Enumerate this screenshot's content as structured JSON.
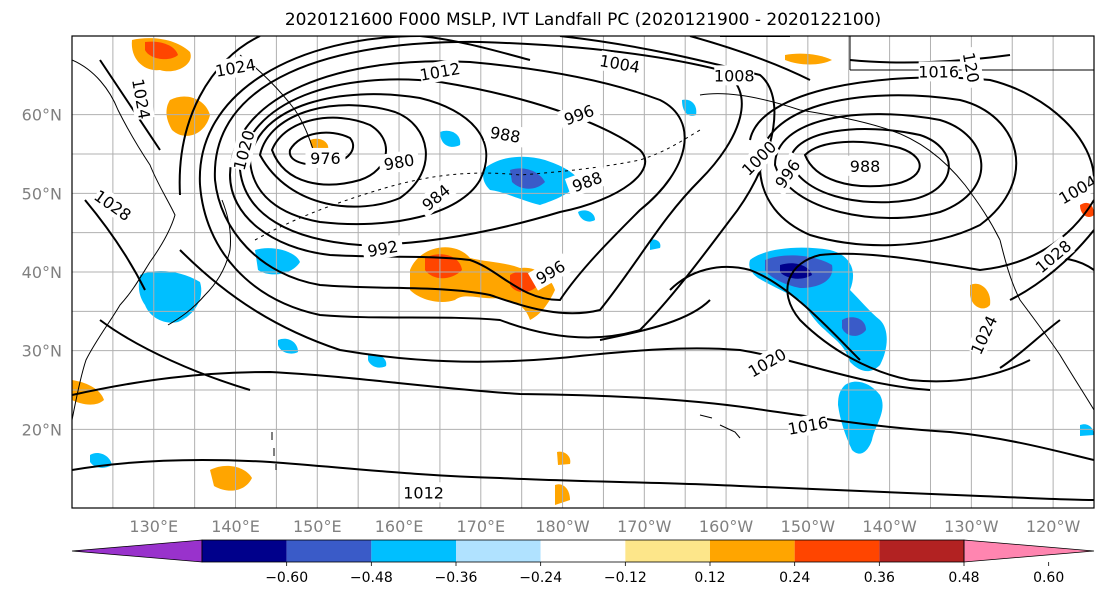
{
  "title": "2020121600 F000 MSLP, IVT Landfall PC (2020121900 - 2020122100)",
  "map": {
    "lon_range": [
      120,
      245
    ],
    "lat_range": [
      10,
      70
    ],
    "lat_ticks": [
      {
        "lat": 60,
        "label": "60°N"
      },
      {
        "lat": 50,
        "label": "50°N"
      },
      {
        "lat": 40,
        "label": "40°N"
      },
      {
        "lat": 30,
        "label": "30°N"
      },
      {
        "lat": 20,
        "label": "20°N"
      }
    ],
    "lon_ticks": [
      {
        "lon": 130,
        "label": "130°E"
      },
      {
        "lon": 140,
        "label": "140°E"
      },
      {
        "lon": 150,
        "label": "150°E"
      },
      {
        "lon": 160,
        "label": "160°E"
      },
      {
        "lon": 170,
        "label": "170°E"
      },
      {
        "lon": 180,
        "label": "180°W"
      },
      {
        "lon": 190,
        "label": "170°W"
      },
      {
        "lon": 200,
        "label": "160°W"
      },
      {
        "lon": 210,
        "label": "150°W"
      },
      {
        "lon": 220,
        "label": "140°W"
      },
      {
        "lon": 230,
        "label": "130°W"
      },
      {
        "lon": 240,
        "label": "120°W"
      }
    ],
    "gridlines": true
  },
  "colorbar": {
    "colors": [
      "#9932cc",
      "#00008b",
      "#3a5bc8",
      "#00bfff",
      "#b0e2ff",
      "#ffffff",
      "#fde68a",
      "#ffa500",
      "#ff4500",
      "#b22222",
      "#ff85b0"
    ],
    "tick_labels": [
      "−0.60",
      "−0.48",
      "−0.36",
      "−0.24",
      "−0.12",
      "0.12",
      "0.24",
      "0.36",
      "0.48",
      "0.60"
    ]
  },
  "contour_labels": [
    {
      "text": "1012",
      "lon": 165,
      "lat": 65.5,
      "rot": -10
    },
    {
      "text": "1004",
      "lon": 187,
      "lat": 66.5,
      "rot": 10
    },
    {
      "text": "1008",
      "lon": 201,
      "lat": 65,
      "rot": 0
    },
    {
      "text": "1016",
      "lon": 226,
      "lat": 65.5,
      "rot": 0
    },
    {
      "text": "120",
      "lon": 230,
      "lat": 66,
      "rot": 80
    },
    {
      "text": "1024",
      "lon": 128.5,
      "lat": 62,
      "rot": 80
    },
    {
      "text": "1020",
      "lon": 141,
      "lat": 55.5,
      "rot": -75
    },
    {
      "text": "1028",
      "lon": 125,
      "lat": 48.5,
      "rot": 35
    },
    {
      "text": "1024",
      "lon": 140,
      "lat": 66,
      "rot": -10
    },
    {
      "text": "996",
      "lon": 182,
      "lat": 60,
      "rot": -20
    },
    {
      "text": "988",
      "lon": 173,
      "lat": 57.5,
      "rot": 10
    },
    {
      "text": "976",
      "lon": 151,
      "lat": 54.5,
      "rot": 0
    },
    {
      "text": "980",
      "lon": 160,
      "lat": 54,
      "rot": -10
    },
    {
      "text": "984",
      "lon": 164.5,
      "lat": 49.5,
      "rot": -40
    },
    {
      "text": "988",
      "lon": 183,
      "lat": 51.5,
      "rot": -20
    },
    {
      "text": "992",
      "lon": 158,
      "lat": 43,
      "rot": -10
    },
    {
      "text": "996",
      "lon": 178.5,
      "lat": 40,
      "rot": -30
    },
    {
      "text": "1000",
      "lon": 204,
      "lat": 54.5,
      "rot": -45
    },
    {
      "text": "996",
      "lon": 207.5,
      "lat": 52.5,
      "rot": -55
    },
    {
      "text": "988",
      "lon": 217,
      "lat": 53.5,
      "rot": 0
    },
    {
      "text": "1020",
      "lon": 205,
      "lat": 28.5,
      "rot": -30
    },
    {
      "text": "1016",
      "lon": 210,
      "lat": 20.5,
      "rot": -10
    },
    {
      "text": "1024",
      "lon": 231.5,
      "lat": 32,
      "rot": -65
    },
    {
      "text": "1028",
      "lon": 240,
      "lat": 42,
      "rot": -40
    },
    {
      "text": "1004",
      "lon": 243,
      "lat": 50.5,
      "rot": -30
    },
    {
      "text": "1012",
      "lon": 163,
      "lat": 12,
      "rot": 0
    }
  ]
}
